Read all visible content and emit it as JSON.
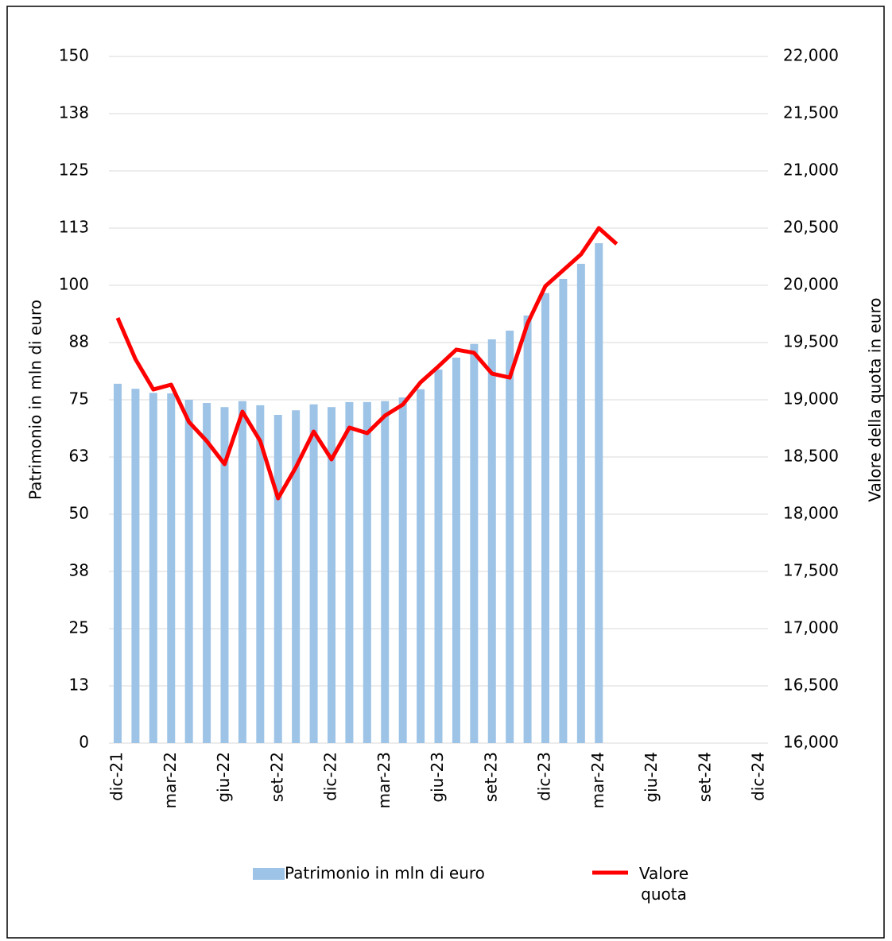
{
  "chart_data": {
    "type": "bar",
    "categories": [
      "dic-21",
      null,
      null,
      "mar-22",
      null,
      null,
      "giu-22",
      null,
      null,
      "set-22",
      null,
      null,
      "dic-22",
      null,
      null,
      "mar-23",
      null,
      null,
      "giu-23",
      null,
      null,
      "set-23",
      null,
      null,
      "dic-23",
      null,
      null,
      "mar-24",
      null,
      null,
      "giu-24",
      null,
      null,
      "set-24",
      null,
      null,
      "dic-24"
    ],
    "series": [
      {
        "name": "Patrimonio in mln di euro",
        "type": "bar",
        "color": "#9dc3e6",
        "values": [
          78.5,
          77.4,
          76.5,
          76.4,
          75,
          74.3,
          73.4,
          74.7,
          73.8,
          71.7,
          72.7,
          74,
          73.4,
          74.5,
          74.5,
          74.7,
          75.5,
          77.3,
          81.6,
          84.2,
          87.2,
          88.2,
          90.1,
          93.4,
          98.3,
          101.4,
          104.7,
          109.2,
          null,
          null,
          null,
          null,
          null,
          null,
          null,
          null,
          null
        ]
      },
      {
        "name": "Valore quota",
        "type": "line",
        "axis": "y2",
        "color": "#ff0000",
        "values": [
          19715,
          19354,
          19090,
          19132,
          18806,
          18639,
          18437,
          18896,
          18639,
          18139,
          18410,
          18722,
          18479,
          18757,
          18708,
          18861,
          18958,
          19153,
          19292,
          19438,
          19410,
          19229,
          19194,
          19667,
          19993,
          20132,
          20271,
          20500,
          20361,
          null,
          null,
          null,
          null,
          null,
          null,
          null,
          null
        ]
      }
    ],
    "ylabel": "Patrimonio in mln di euro",
    "y2label": "Valore della quota in euro",
    "ylim": [
      0,
      150
    ],
    "yticks": [
      0,
      {
        "value": 12.5,
        "label": "13"
      },
      25,
      {
        "value": 37.5,
        "label": "38"
      },
      50,
      {
        "value": 62.5,
        "label": "63"
      },
      75,
      {
        "value": 87.5,
        "label": "88"
      },
      100,
      {
        "value": 112.5,
        "label": "113"
      },
      125,
      {
        "value": 137.5,
        "label": "138"
      },
      150
    ],
    "y2lim": [
      16000,
      22000
    ],
    "y2ticks": [
      {
        "value": 16000,
        "label": "16,000"
      },
      {
        "value": 16500,
        "label": "16,500"
      },
      {
        "value": 17000,
        "label": "17,000"
      },
      {
        "value": 17500,
        "label": "17,500"
      },
      {
        "value": 18000,
        "label": "18,000"
      },
      {
        "value": 18500,
        "label": "18,500"
      },
      {
        "value": 19000,
        "label": "19,000"
      },
      {
        "value": 19500,
        "label": "19,500"
      },
      {
        "value": 20000,
        "label": "20,000"
      },
      {
        "value": 20500,
        "label": "20,500"
      },
      {
        "value": 21000,
        "label": "21,000"
      },
      {
        "value": 21500,
        "label": "21,500"
      },
      {
        "value": 22000,
        "label": "22,000"
      }
    ],
    "grid": true
  }
}
